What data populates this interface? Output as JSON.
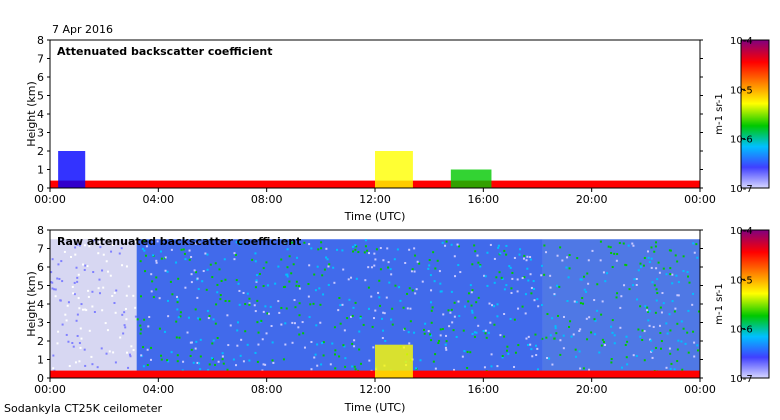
{
  "header": {
    "date": "7 Apr 2016"
  },
  "footer": {
    "instrument": "Sodankyla CT25K ceilometer"
  },
  "colors": {
    "scale": [
      "#c8c8ff",
      "#0000ff",
      "#00c8ff",
      "#00c800",
      "#ffff00",
      "#ff8000",
      "#ff0000",
      "#800080"
    ]
  },
  "chart_data": [
    {
      "type": "heatmap",
      "title": "Attenuated backscatter coefficient",
      "xlabel": "Time (UTC)",
      "ylabel": "Height (km)",
      "xticks": [
        "00:00",
        "04:00",
        "08:00",
        "12:00",
        "16:00",
        "20:00",
        "00:00"
      ],
      "yticks": [
        "0",
        "1",
        "2",
        "3",
        "4",
        "5",
        "6",
        "7",
        "8"
      ],
      "xlim_hours": [
        0,
        24
      ],
      "ylim_km": [
        0,
        8
      ],
      "colorbar": {
        "min": "10-7",
        "max": "10-4",
        "ticks": [
          "10-4",
          "10-5",
          "10-6",
          "10-7"
        ],
        "unit": "m-1 sr-1",
        "scale": "log"
      },
      "features": [
        {
          "start_h": 0.0,
          "end_h": 24.0,
          "top_km": 0.4,
          "level": "red"
        },
        {
          "start_h": 0.3,
          "end_h": 1.3,
          "top_km": 2.0,
          "level": "blue"
        },
        {
          "start_h": 12.0,
          "end_h": 13.4,
          "top_km": 2.0,
          "level": "yellow"
        },
        {
          "start_h": 14.8,
          "end_h": 16.3,
          "top_km": 1.0,
          "level": "green"
        }
      ]
    },
    {
      "type": "heatmap",
      "title": "Raw attenuated backscatter coefficient",
      "xlabel": "Time (UTC)",
      "ylabel": "Height (km)",
      "xticks": [
        "00:00",
        "04:00",
        "08:00",
        "12:00",
        "16:00",
        "20:00",
        "00:00"
      ],
      "yticks": [
        "0",
        "1",
        "2",
        "3",
        "4",
        "5",
        "6",
        "7",
        "8"
      ],
      "xlim_hours": [
        0,
        24
      ],
      "ylim_km": [
        0,
        8
      ],
      "colorbar": {
        "min": "10-7",
        "max": "10-4",
        "ticks": [
          "10-4",
          "10-5",
          "10-6",
          "10-7"
        ],
        "unit": "m-1 sr-1",
        "scale": "log"
      },
      "features": [
        {
          "start_h": 0.0,
          "end_h": 3.2,
          "top_km": 7.5,
          "level": "noise-light"
        },
        {
          "start_h": 3.2,
          "end_h": 18.2,
          "top_km": 7.5,
          "level": "noise-blue"
        },
        {
          "start_h": 18.2,
          "end_h": 24.0,
          "top_km": 7.5,
          "level": "noise-mixed"
        },
        {
          "start_h": 0.0,
          "end_h": 24.0,
          "top_km": 0.4,
          "level": "red"
        },
        {
          "start_h": 12.0,
          "end_h": 13.4,
          "top_km": 1.8,
          "level": "yellow"
        }
      ]
    }
  ]
}
